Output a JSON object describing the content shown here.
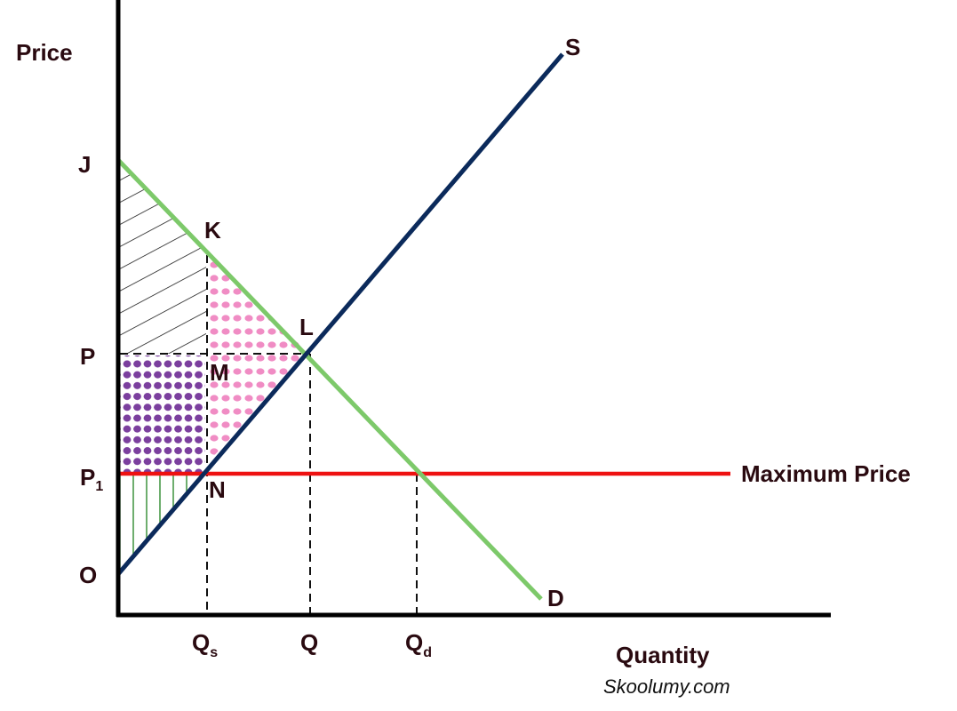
{
  "chart_data": {
    "type": "supply-demand",
    "y_axis_label": "Price",
    "x_axis_label": "Quantity",
    "price_labels": {
      "J": "J",
      "P": "P",
      "P1": "P",
      "P1_sub": "1",
      "O": "O"
    },
    "quantity_labels": {
      "Qs": "Q",
      "Qs_sub": "s",
      "Q": "Q",
      "Qd": "Q",
      "Qd_sub": "d"
    },
    "points": {
      "K": "K",
      "L": "L",
      "M": "M",
      "N": "N"
    },
    "curves": {
      "supply": {
        "name": "S",
        "color": "#0b2a5b"
      },
      "demand": {
        "name": "D",
        "color": "#7dc96a"
      },
      "ceiling": {
        "name": "Maximum Price",
        "color": "#ee1111"
      }
    },
    "fills": {
      "hatch_black": "#111111",
      "dots_purple": "#7b3f9e",
      "dots_pink": "#f08cc4",
      "hatch_green": "#2e8b2e"
    }
  },
  "credit": "Skoolumy.com"
}
